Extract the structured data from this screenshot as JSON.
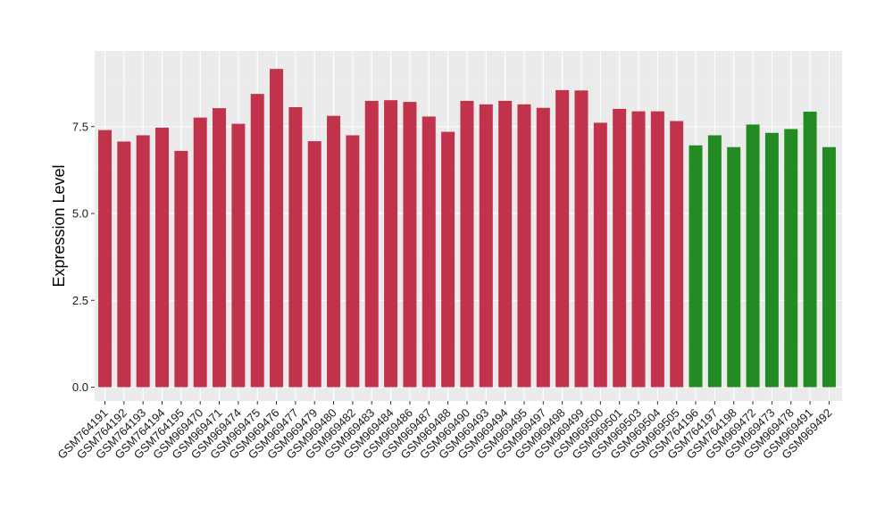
{
  "chart_data": {
    "type": "bar",
    "title": "",
    "xlabel": "",
    "ylabel": "Expression Level",
    "ylim": [
      0,
      9.6
    ],
    "yticks": [
      0.0,
      2.5,
      5.0,
      7.5
    ],
    "ytick_labels": [
      "0.0",
      "2.5",
      "5.0",
      "7.5"
    ],
    "grid": true,
    "legend": "none",
    "colors": {
      "group1": "#c0334a",
      "group2": "#228b22",
      "panel": "#ebebeb"
    },
    "categories": [
      "GSM764191",
      "GSM764192",
      "GSM764193",
      "GSM764194",
      "GSM764195",
      "GSM969470",
      "GSM969471",
      "GSM969474",
      "GSM969475",
      "GSM969476",
      "GSM969477",
      "GSM969479",
      "GSM969480",
      "GSM969482",
      "GSM969483",
      "GSM969484",
      "GSM969486",
      "GSM969487",
      "GSM969488",
      "GSM969490",
      "GSM969493",
      "GSM969494",
      "GSM969495",
      "GSM969497",
      "GSM969498",
      "GSM969499",
      "GSM969500",
      "GSM969501",
      "GSM969503",
      "GSM969504",
      "GSM969505",
      "GSM764196",
      "GSM764197",
      "GSM764198",
      "GSM969472",
      "GSM969473",
      "GSM969478",
      "GSM969491",
      "GSM969492"
    ],
    "values": [
      7.4,
      7.07,
      7.25,
      7.47,
      6.8,
      7.76,
      8.03,
      7.58,
      8.44,
      9.16,
      8.06,
      7.08,
      7.81,
      7.25,
      8.24,
      8.26,
      8.21,
      7.79,
      7.35,
      8.24,
      8.14,
      8.24,
      8.14,
      8.04,
      8.55,
      8.54,
      7.61,
      8.01,
      7.94,
      7.94,
      7.66,
      6.96,
      7.25,
      6.91,
      7.56,
      7.32,
      7.43,
      7.93,
      6.91
    ],
    "groups": [
      "group1",
      "group1",
      "group1",
      "group1",
      "group1",
      "group1",
      "group1",
      "group1",
      "group1",
      "group1",
      "group1",
      "group1",
      "group1",
      "group1",
      "group1",
      "group1",
      "group1",
      "group1",
      "group1",
      "group1",
      "group1",
      "group1",
      "group1",
      "group1",
      "group1",
      "group1",
      "group1",
      "group1",
      "group1",
      "group1",
      "group1",
      "group2",
      "group2",
      "group2",
      "group2",
      "group2",
      "group2",
      "group2",
      "group2"
    ]
  }
}
